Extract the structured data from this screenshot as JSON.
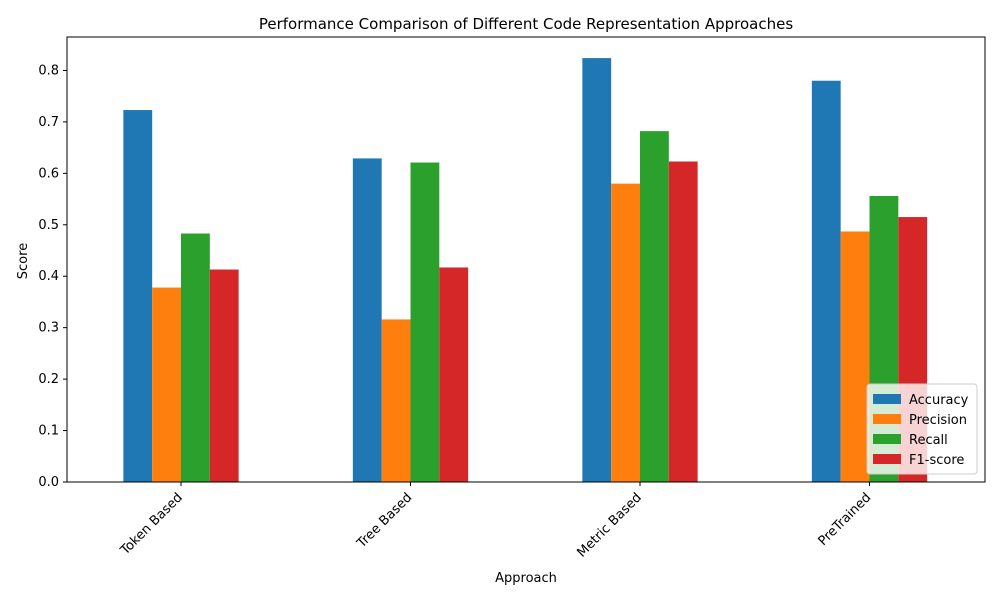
{
  "chart_data": {
    "type": "bar",
    "title": "Performance Comparison of Different Code Representation Approaches",
    "xlabel": "Approach",
    "ylabel": "Score",
    "categories": [
      "Token Based",
      "Tree Based",
      "Metric Based",
      "PreTrained"
    ],
    "series": [
      {
        "name": "Accuracy",
        "color": "#1f77b4",
        "values": [
          0.723,
          0.629,
          0.824,
          0.78
        ]
      },
      {
        "name": "Precision",
        "color": "#ff7f0e",
        "values": [
          0.378,
          0.316,
          0.58,
          0.487
        ]
      },
      {
        "name": "Recall",
        "color": "#2ca02c",
        "values": [
          0.483,
          0.621,
          0.682,
          0.556
        ]
      },
      {
        "name": "F1-score",
        "color": "#d62728",
        "values": [
          0.413,
          0.417,
          0.623,
          0.515
        ]
      }
    ],
    "ylim": [
      0,
      0.865
    ],
    "yticks": [
      "0.0",
      "0.1",
      "0.2",
      "0.3",
      "0.4",
      "0.5",
      "0.6",
      "0.7",
      "0.8"
    ],
    "legend_position": "lower-right",
    "grid": false
  }
}
